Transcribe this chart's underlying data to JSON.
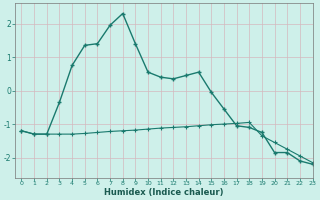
{
  "xlabel": "Humidex (Indice chaleur)",
  "x": [
    0,
    1,
    2,
    3,
    4,
    5,
    6,
    7,
    8,
    9,
    10,
    11,
    12,
    13,
    14,
    15,
    16,
    17,
    18,
    19,
    20,
    21,
    22,
    23
  ],
  "line1": [
    -1.2,
    -1.3,
    -1.3,
    -0.35,
    0.75,
    1.35,
    1.4,
    1.95,
    2.3,
    1.4,
    0.55,
    0.4,
    0.35,
    0.45,
    0.55,
    -0.05,
    -0.55,
    -1.05,
    -1.1,
    -1.25,
    -1.85,
    -1.85,
    -2.1,
    -2.2
  ],
  "line2": [
    -1.2,
    -1.3,
    -1.3,
    -1.3,
    -1.3,
    -1.28,
    -1.25,
    -1.22,
    -1.2,
    -1.18,
    -1.15,
    -1.12,
    -1.1,
    -1.08,
    -1.05,
    -1.02,
    -1.0,
    -0.98,
    -0.95,
    -1.35,
    -1.55,
    -1.75,
    -1.95,
    -2.15
  ],
  "line_color": "#1a7a6e",
  "bg_color": "#cef0ea",
  "grid_color": "#d4b8be",
  "ylim": [
    -2.6,
    2.6
  ],
  "xlim": [
    -0.5,
    23
  ],
  "yticks": [
    -2,
    -1,
    0,
    1,
    2
  ],
  "xticks": [
    0,
    1,
    2,
    3,
    4,
    5,
    6,
    7,
    8,
    9,
    10,
    11,
    12,
    13,
    14,
    15,
    16,
    17,
    18,
    19,
    20,
    21,
    22,
    23
  ],
  "tick_color": "#1a7a6e",
  "label_color": "#1a5a50"
}
